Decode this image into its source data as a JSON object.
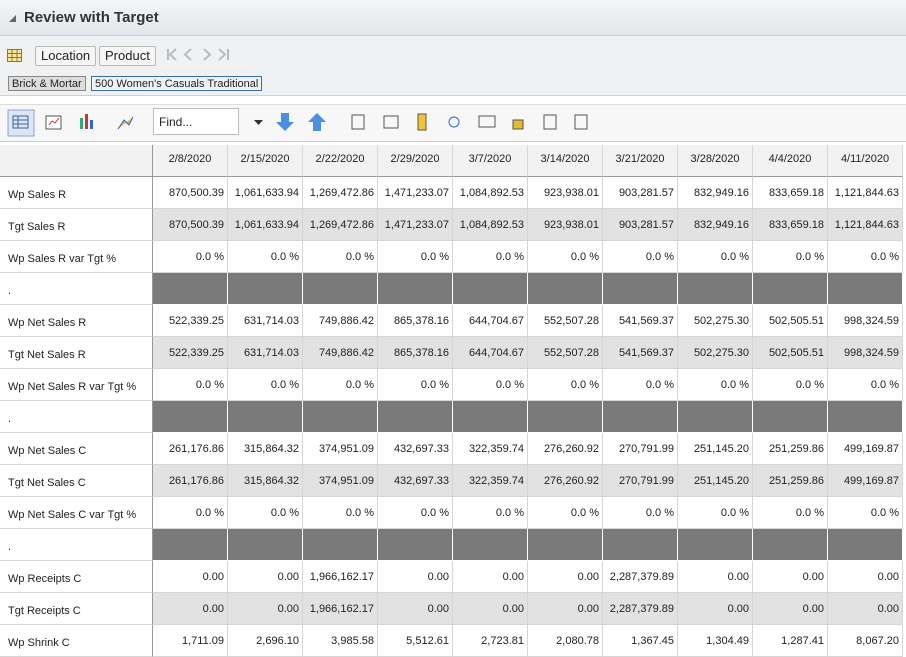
{
  "header": {
    "title": "Review with Target"
  },
  "filters": {
    "buttons": [
      "Location",
      "Product"
    ],
    "breadcrumbs": [
      "Brick & Mortar",
      "500 Women's Casuals Traditional"
    ]
  },
  "toolbar": {
    "find": "Find..."
  },
  "table": {
    "columns": [
      "2/8/2020",
      "2/15/2020",
      "2/22/2020",
      "2/29/2020",
      "3/7/2020",
      "3/14/2020",
      "3/21/2020",
      "3/28/2020",
      "4/4/2020",
      "4/11/2020"
    ],
    "rows": [
      {
        "label": "Wp Sales R",
        "cells": [
          "870,500.39",
          "1,061,633.94",
          "1,269,472.86",
          "1,471,233.07",
          "1,084,892.53",
          "923,938.01",
          "903,281.57",
          "832,949.16",
          "833,659.18",
          "1,121,844.63"
        ]
      },
      {
        "label": "Tgt Sales R",
        "cells": [
          "870,500.39",
          "1,061,633.94",
          "1,269,472.86",
          "1,471,233.07",
          "1,084,892.53",
          "923,938.01",
          "903,281.57",
          "832,949.16",
          "833,659.18",
          "1,121,844.63"
        ]
      },
      {
        "label": "Wp Sales R var Tgt %",
        "cells": [
          "0.0 %",
          "0.0 %",
          "0.0 %",
          "0.0 %",
          "0.0 %",
          "0.0 %",
          "0.0 %",
          "0.0 %",
          "0.0 %",
          "0.0 %"
        ]
      },
      {
        "label": "."
      },
      {
        "label": "Wp Net Sales R",
        "cells": [
          "522,339.25",
          "631,714.03",
          "749,886.42",
          "865,378.16",
          "644,704.67",
          "552,507.28",
          "541,569.37",
          "502,275.30",
          "502,505.51",
          "998,324.59"
        ]
      },
      {
        "label": "Tgt Net Sales R",
        "cells": [
          "522,339.25",
          "631,714.03",
          "749,886.42",
          "865,378.16",
          "644,704.67",
          "552,507.28",
          "541,569.37",
          "502,275.30",
          "502,505.51",
          "998,324.59"
        ]
      },
      {
        "label": "Wp Net Sales R var Tgt %",
        "cells": [
          "0.0 %",
          "0.0 %",
          "0.0 %",
          "0.0 %",
          "0.0 %",
          "0.0 %",
          "0.0 %",
          "0.0 %",
          "0.0 %",
          "0.0 %"
        ]
      },
      {
        "label": "."
      },
      {
        "label": "Wp Net Sales C",
        "cells": [
          "261,176.86",
          "315,864.32",
          "374,951.09",
          "432,697.33",
          "322,359.74",
          "276,260.92",
          "270,791.99",
          "251,145.20",
          "251,259.86",
          "499,169.87"
        ]
      },
      {
        "label": "Tgt Net Sales C",
        "cells": [
          "261,176.86",
          "315,864.32",
          "374,951.09",
          "432,697.33",
          "322,359.74",
          "276,260.92",
          "270,791.99",
          "251,145.20",
          "251,259.86",
          "499,169.87"
        ]
      },
      {
        "label": "Wp Net Sales C var Tgt %",
        "cells": [
          "0.0 %",
          "0.0 %",
          "0.0 %",
          "0.0 %",
          "0.0 %",
          "0.0 %",
          "0.0 %",
          "0.0 %",
          "0.0 %",
          "0.0 %"
        ]
      },
      {
        "label": "."
      },
      {
        "label": "Wp Receipts C",
        "cells": [
          "0.00",
          "0.00",
          "1,966,162.17",
          "0.00",
          "0.00",
          "0.00",
          "2,287,379.89",
          "0.00",
          "0.00",
          "0.00"
        ]
      },
      {
        "label": "Tgt Receipts C",
        "cells": [
          "0.00",
          "0.00",
          "1,966,162.17",
          "0.00",
          "0.00",
          "0.00",
          "2,287,379.89",
          "0.00",
          "0.00",
          "0.00"
        ]
      },
      {
        "label": "Wp Shrink C",
        "cells": [
          "1,711.09",
          "2,696.10",
          "3,985.58",
          "5,512.61",
          "2,723.81",
          "2,080.78",
          "1,367.45",
          "1,304.49",
          "1,287.41",
          "8,067.20"
        ]
      }
    ]
  }
}
